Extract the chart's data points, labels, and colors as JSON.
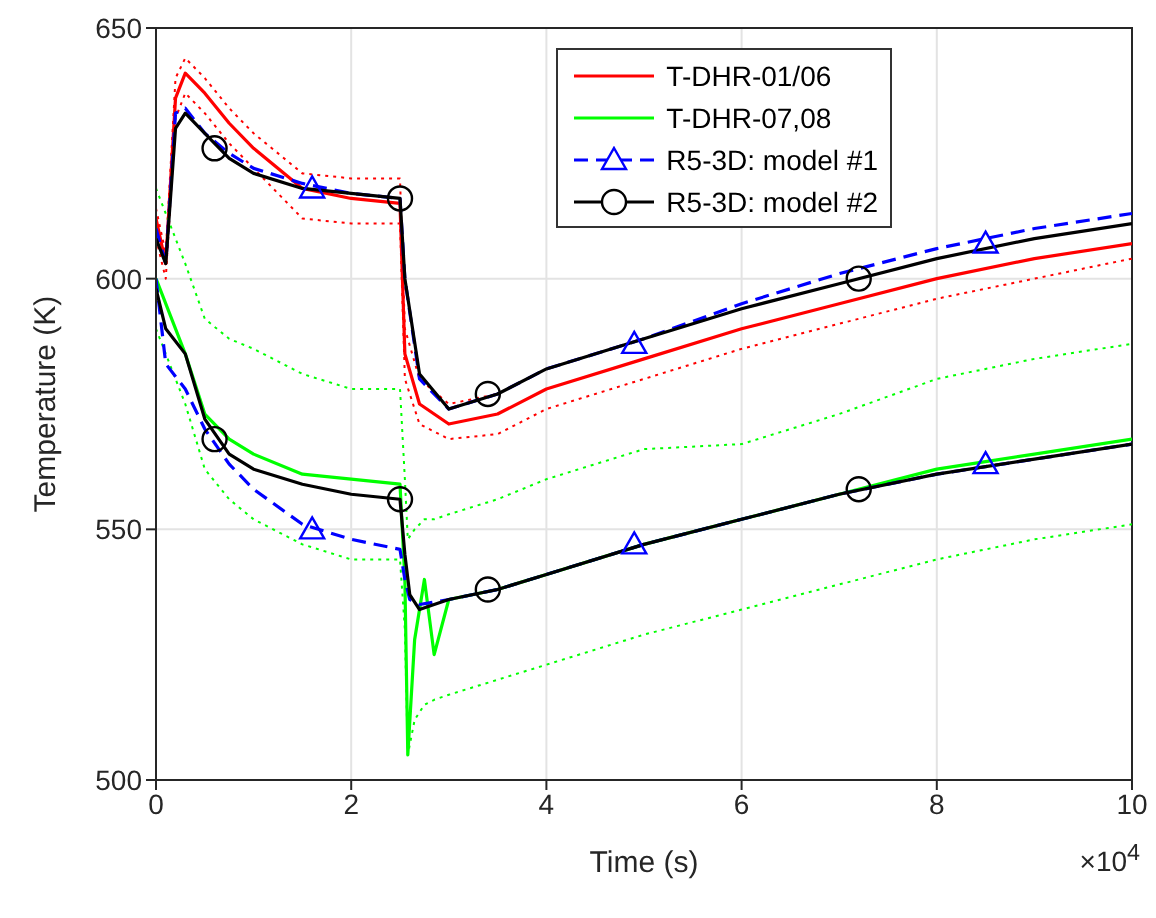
{
  "chart_data": {
    "type": "line",
    "xlabel": "Time (s)",
    "ylabel": "Temperature (K)",
    "annotations": [
      "×10$^{4}$"
    ],
    "xlim": [
      0,
      10
    ],
    "xticks": [
      0,
      2,
      4,
      6,
      8,
      10
    ],
    "ylim": [
      500,
      650
    ],
    "yticks": [
      500,
      550,
      600,
      650
    ],
    "grid": true,
    "legend": "top right",
    "series": [
      {
        "color": "#ff0000",
        "line_style": "dotted",
        "x": [
          0,
          0.1,
          0.2,
          0.3,
          0.5,
          0.75,
          1,
          1.5,
          2,
          2.5,
          2.55,
          2.7,
          3,
          3.5
        ],
        "values": [
          614,
          605,
          640,
          644,
          640,
          634,
          629,
          621,
          620,
          620,
          590,
          580,
          575,
          577
        ]
      },
      {
        "color": "#ff0000",
        "line_style": "dotted",
        "x": [
          0,
          0.1,
          0.2,
          0.3,
          0.5,
          0.75,
          1,
          1.5,
          2,
          2.5,
          2.55,
          2.7,
          3,
          3.5,
          4,
          5,
          6,
          7,
          8,
          9,
          10
        ],
        "values": [
          608,
          600,
          632,
          637,
          633,
          627,
          622,
          612,
          611,
          611,
          580,
          571,
          568,
          569,
          574,
          580,
          586,
          591,
          596,
          600,
          604
        ]
      },
      {
        "name": "T-DHR-01/06",
        "color": "#ff0000",
        "line_style": "solid",
        "x": [
          0,
          0.1,
          0.2,
          0.3,
          0.5,
          0.75,
          1,
          1.5,
          2,
          2.5,
          2.55,
          2.7,
          3,
          3.5,
          4,
          5,
          6,
          7,
          8,
          9,
          10
        ],
        "values": [
          612,
          603,
          636,
          641,
          637,
          631,
          626,
          618,
          616,
          615,
          585,
          575,
          571,
          573,
          578,
          584,
          590,
          595,
          600,
          604,
          607
        ]
      },
      {
        "color": "#00ff00",
        "line_style": "dotted",
        "x": [
          0,
          0.3,
          0.5,
          0.75,
          1,
          1.5,
          2,
          2.5,
          2.55,
          2.58,
          2.65,
          2.75,
          2.85,
          3,
          3.5,
          4,
          5,
          6,
          7,
          8,
          9,
          10
        ],
        "values": [
          618,
          603,
          592,
          588,
          586,
          581,
          578,
          578,
          560,
          548,
          550,
          552,
          552,
          553,
          556,
          560,
          566,
          567,
          573,
          580,
          584,
          587
        ]
      },
      {
        "color": "#00ff00",
        "line_style": "dotted",
        "x": [
          0,
          0.3,
          0.5,
          0.75,
          1,
          1.5,
          2,
          2.5,
          2.55,
          2.58,
          2.65,
          2.75,
          2.85,
          3,
          3.5,
          4,
          5,
          6,
          7,
          8,
          9,
          10
        ],
        "values": [
          590,
          575,
          562,
          556,
          552,
          547,
          544,
          544,
          530,
          505,
          512,
          515,
          516,
          517,
          520,
          523,
          529,
          534,
          539,
          544,
          548,
          551
        ]
      },
      {
        "name": "T-DHR-07,08",
        "color": "#00ff00",
        "line_style": "solid",
        "x": [
          0,
          0.3,
          0.5,
          0.75,
          1,
          1.5,
          2,
          2.5,
          2.55,
          2.58,
          2.65,
          2.75,
          2.85,
          3,
          3.5,
          4,
          5,
          6,
          7,
          8,
          9,
          10
        ],
        "values": [
          600,
          585,
          573,
          568,
          565,
          561,
          560,
          559,
          540,
          505,
          528,
          540,
          525,
          536,
          538,
          541,
          547,
          552,
          557,
          562,
          565,
          568
        ]
      },
      {
        "name": "R5-3D: model #1",
        "color": "#0000ff",
        "line_style": "dashed",
        "x": [
          0,
          0.1,
          0.2,
          0.3,
          0.5,
          0.75,
          1,
          1.5,
          2,
          2.5,
          2.55,
          2.7,
          3,
          3.5,
          4,
          5,
          6,
          7,
          8,
          9,
          10
        ],
        "values": [
          610,
          603,
          633,
          634,
          629,
          625,
          622,
          619,
          617,
          616,
          600,
          580,
          574,
          577,
          582,
          588,
          595,
          601,
          606,
          610,
          613
        ]
      },
      {
        "color": "#0000ff",
        "line_style": "dashed",
        "x": [
          0,
          0.1,
          0.3,
          0.5,
          0.75,
          1,
          1.5,
          2,
          2.5,
          2.55,
          2.6,
          2.7,
          3,
          3.5,
          4,
          5,
          6,
          7,
          8,
          9,
          10
        ],
        "values": [
          600,
          583,
          578,
          570,
          563,
          558,
          551,
          548,
          546,
          540,
          536,
          535,
          536,
          538,
          541,
          547,
          552,
          557,
          561,
          564,
          567
        ]
      },
      {
        "color": "#0000ff",
        "type": "scatter",
        "marker": "triangle",
        "x": [
          1.6,
          4.9,
          8.5,
          1.6,
          4.9,
          8.5
        ],
        "values": [
          618,
          587,
          607,
          550,
          547,
          563
        ]
      },
      {
        "name": "R5-3D: model #2",
        "color": "#000000",
        "line_style": "solid",
        "x": [
          0,
          0.1,
          0.2,
          0.3,
          0.5,
          0.75,
          1,
          1.5,
          2,
          2.5,
          2.55,
          2.7,
          3,
          3.5,
          4,
          5,
          6,
          7,
          8,
          9,
          10
        ],
        "values": [
          608,
          603,
          630,
          633,
          629,
          624,
          621,
          618,
          617,
          616,
          600,
          581,
          574,
          577,
          582,
          588,
          594,
          599,
          604,
          608,
          611
        ]
      },
      {
        "color": "#000000",
        "line_style": "solid",
        "x": [
          0,
          0.1,
          0.3,
          0.5,
          0.75,
          1,
          1.5,
          2,
          2.5,
          2.55,
          2.6,
          2.7,
          3,
          3.5,
          4,
          5,
          6,
          7,
          8,
          9,
          10
        ],
        "values": [
          598,
          590,
          585,
          572,
          565,
          562,
          559,
          557,
          556,
          545,
          537,
          534,
          536,
          538,
          541,
          547,
          552,
          557,
          561,
          564,
          567
        ]
      },
      {
        "color": "#000000",
        "type": "scatter",
        "marker": "circle",
        "x": [
          0.6,
          2.5,
          3.4,
          7.2,
          0.6,
          2.5,
          3.4,
          7.2
        ],
        "values": [
          626,
          616,
          577,
          600,
          568,
          556,
          538,
          558
        ]
      }
    ]
  }
}
